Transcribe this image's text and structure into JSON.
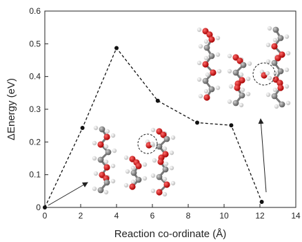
{
  "chart_data": {
    "type": "line",
    "title": "",
    "xlabel": "Reaction co-ordinate (Å)",
    "ylabel": "ΔEnergy (eV)",
    "xlim": [
      0,
      14
    ],
    "ylim": [
      0,
      0.6
    ],
    "x_ticks": [
      "0",
      "2",
      "4",
      "6",
      "8",
      "10",
      "12",
      "14"
    ],
    "y_ticks": [
      "0",
      "0.1",
      "0.2",
      "0.3",
      "0.4",
      "0.5",
      "0.6"
    ],
    "grid": false,
    "line_style": "dashed",
    "marker_color": "#111111",
    "series": [
      {
        "points": [
          {
            "x": 0,
            "y": 0
          },
          {
            "x": 2.1,
            "y": 0.243
          },
          {
            "x": 4.0,
            "y": 0.487
          },
          {
            "x": 6.3,
            "y": 0.326
          },
          {
            "x": 8.5,
            "y": 0.259
          },
          {
            "x": 10.4,
            "y": 0.251
          },
          {
            "x": 12.1,
            "y": 0.017
          }
        ]
      }
    ],
    "insets": [
      {
        "name": "initial-structure-inset",
        "depicts": "molecular structure with circled atom",
        "circled": true
      },
      {
        "name": "final-structure-inset",
        "depicts": "molecular structure with circled atom",
        "circled": true
      }
    ]
  }
}
